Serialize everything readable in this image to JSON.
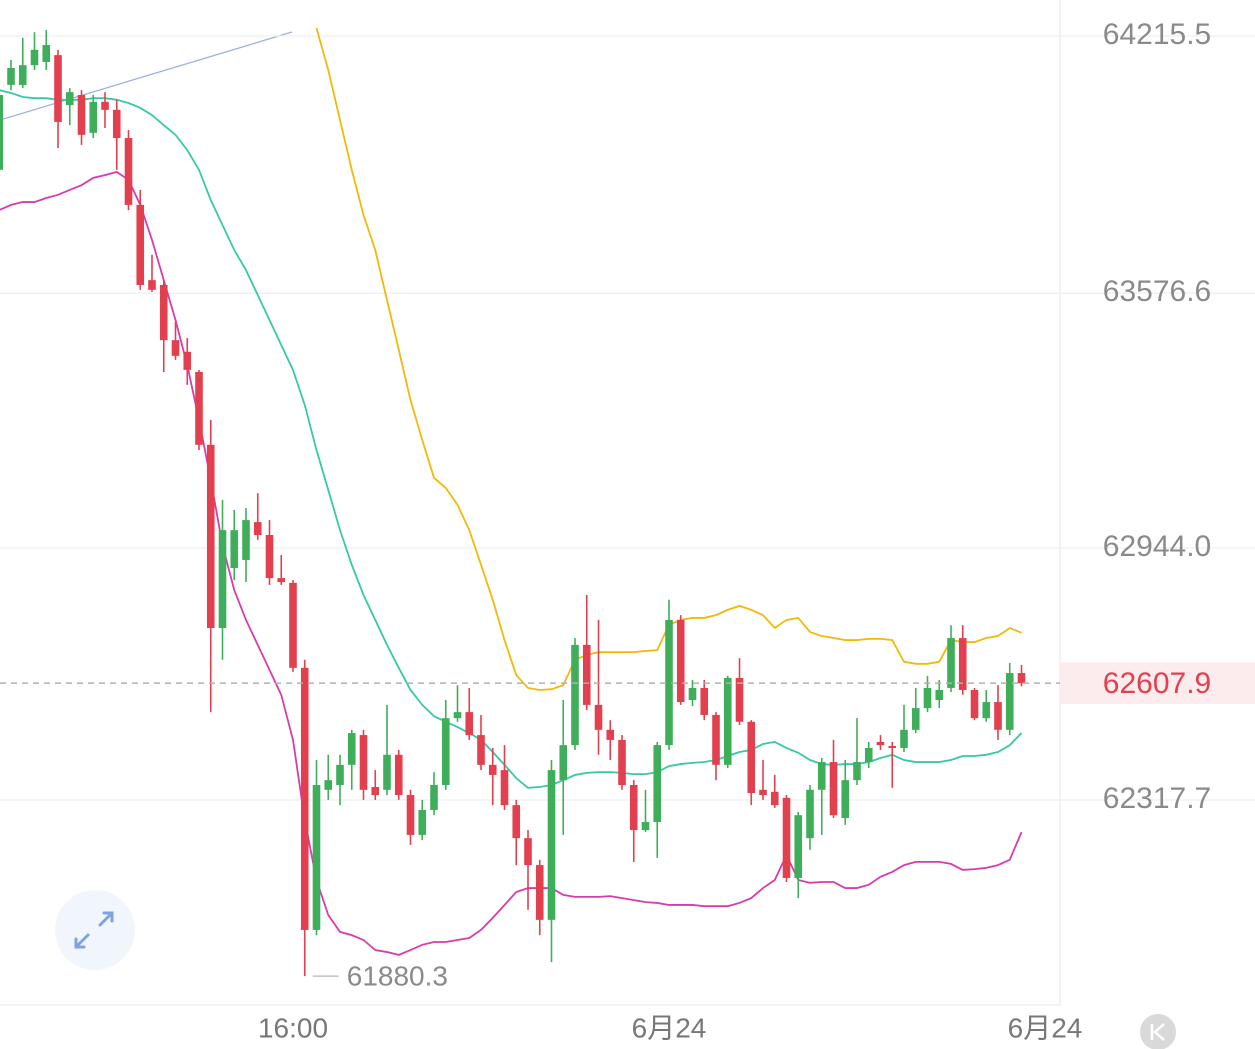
{
  "chart_data": {
    "type": "candlestick",
    "categories": [
      null,
      null,
      null,
      null,
      null,
      null,
      null,
      null,
      null,
      null,
      null,
      null,
      null,
      null,
      null,
      null,
      null,
      null,
      null,
      null,
      null,
      null,
      null,
      null,
      null,
      "16:00",
      null,
      null,
      null,
      null,
      null,
      null,
      null,
      null,
      null,
      null,
      null,
      null,
      null,
      null,
      null,
      null,
      null,
      null,
      null,
      null,
      null,
      null,
      null,
      null,
      null,
      null,
      null,
      null,
      null,
      null,
      null,
      "6月24",
      null,
      null,
      null,
      null,
      null,
      null,
      null,
      null,
      null,
      null,
      null,
      null,
      null,
      null,
      null,
      null,
      null,
      null,
      null,
      null,
      null,
      null,
      null,
      null,
      null,
      null,
      null,
      null,
      null,
      null,
      null,
      "6月24"
    ],
    "open": [
      63883,
      64094,
      64094,
      64143,
      64151,
      64168,
      64044,
      64069,
      63975,
      64052,
      64032,
      63962,
      63796,
      63609,
      63597,
      63460,
      63431,
      63381,
      63200,
      62745,
      62894,
      62914,
      63008,
      62976,
      62869,
      62857,
      62646,
      61995,
      62343,
      62355,
      62405,
      62479,
      62350,
      62343,
      62430,
      62330,
      62231,
      62293,
      62355,
      62521,
      62536,
      62479,
      62405,
      62392,
      62305,
      62223,
      62156,
      62020,
      62367,
      62454,
      62703,
      62554,
      62492,
      62467,
      62355,
      62243,
      62263,
      62454,
      62765,
      62566,
      62596,
      62529,
      62405,
      62621,
      62512,
      62343,
      62338,
      62323,
      62124,
      62223,
      62343,
      62412,
      62273,
      62367,
      62412,
      62462,
      62452,
      62447,
      62492,
      62546,
      62566,
      62596,
      62720,
      62591,
      62521,
      62561,
      62492,
      62633,
      null,
      null
    ],
    "high": [
      64086,
      64156,
      64211,
      64225,
      64230,
      64181,
      64086,
      64081,
      64069,
      64076,
      64057,
      63982,
      63833,
      63672,
      63609,
      63505,
      63465,
      63386,
      63262,
      63063,
      63038,
      63043,
      63080,
      63013,
      62926,
      62864,
      62666,
      62417,
      62430,
      62430,
      62492,
      62492,
      62392,
      62554,
      62442,
      62343,
      62318,
      62387,
      62566,
      62603,
      62596,
      62529,
      62447,
      62454,
      62318,
      62243,
      62169,
      62417,
      62566,
      62720,
      62827,
      62765,
      62516,
      62479,
      62367,
      62343,
      62462,
      62815,
      62777,
      62616,
      62616,
      62536,
      62626,
      62670,
      62516,
      62417,
      62380,
      62330,
      62288,
      62355,
      62422,
      62467,
      62417,
      62521,
      62462,
      62479,
      62462,
      62554,
      62596,
      62626,
      62616,
      62752,
      62752,
      62596,
      62591,
      62603,
      62658,
      62653,
      null,
      null
    ],
    "low": [
      63863,
      64081,
      64086,
      64131,
      64131,
      63937,
      63994,
      63945,
      63962,
      63987,
      63883,
      63783,
      63585,
      63580,
      63381,
      63411,
      63349,
      63187,
      62536,
      62666,
      62864,
      62859,
      62964,
      62852,
      62852,
      62636,
      61880.3,
      61982,
      62318,
      62305,
      62343,
      62318,
      62318,
      62330,
      62318,
      62206,
      62218,
      62280,
      62343,
      62512,
      62467,
      62392,
      62305,
      62293,
      62156,
      62045,
      61982,
      61915,
      62231,
      62442,
      62541,
      62430,
      62417,
      62343,
      62164,
      62238,
      62174,
      62442,
      62554,
      62551,
      62516,
      62367,
      62397,
      62504,
      62305,
      62318,
      62298,
      62114,
      62074,
      62194,
      62231,
      62273,
      62256,
      62355,
      62397,
      62442,
      62348,
      62437,
      62484,
      62536,
      62546,
      62586,
      62579,
      62516,
      62512,
      62467,
      62479,
      62600,
      null,
      null
    ],
    "close": [
      64069,
      64136,
      64143,
      64181,
      64193,
      64002,
      64076,
      63970,
      64052,
      64032,
      63962,
      63796,
      63597,
      63585,
      63460,
      63421,
      63386,
      63200,
      62745,
      62988,
      62988,
      63013,
      62976,
      62869,
      62859,
      62646,
      61995,
      62355,
      62367,
      62405,
      62484,
      62343,
      62330,
      62430,
      62330,
      62231,
      62293,
      62355,
      62521,
      62536,
      62479,
      62405,
      62380,
      62305,
      62223,
      62156,
      62020,
      62392,
      62454,
      62703,
      62554,
      62492,
      62467,
      62355,
      62243,
      62263,
      62454,
      62765,
      62561,
      62596,
      62529,
      62405,
      62621,
      62512,
      62335,
      62330,
      62305,
      62124,
      62280,
      62343,
      62412,
      62280,
      62367,
      62412,
      62447,
      62454,
      62447,
      62492,
      62546,
      62596,
      62591,
      62720,
      62591,
      62521,
      62561,
      62492,
      62633,
      62607.9,
      null,
      null
    ],
    "up_color": "#3fae5b",
    "down_color": "#e2404f",
    "lines": [
      {
        "color": "#f0b90b",
        "values": [
          null,
          null,
          null,
          null,
          null,
          null,
          null,
          null,
          null,
          null,
          null,
          null,
          null,
          null,
          null,
          null,
          null,
          null,
          null,
          null,
          null,
          null,
          null,
          null,
          null,
          null,
          null,
          64235,
          64131,
          64007,
          63883,
          63771,
          63684,
          63560,
          63436,
          63311,
          63212,
          63118,
          63093,
          63051,
          62988,
          62902,
          62815,
          62715,
          62628,
          62596,
          62591,
          62593,
          62603,
          62666,
          62678,
          62685,
          62685,
          62685,
          62685,
          62688,
          62690,
          62753,
          62765,
          62770,
          62770,
          62777,
          62790,
          62800,
          62790,
          62777,
          62745,
          62765,
          62770,
          62735,
          62725,
          62720,
          62715,
          62715,
          62718,
          62718,
          62715,
          62661,
          62656,
          62656,
          62661,
          62715,
          62710,
          62710,
          62720,
          62725,
          62745,
          62733,
          null,
          null
        ]
      },
      {
        "color": "#36c9a4",
        "values": [
          64081,
          64074,
          64064,
          64061,
          64061,
          64057,
          64057,
          64057,
          64061,
          64061,
          64057,
          64049,
          64037,
          64019,
          63994,
          63970,
          63932,
          63883,
          63808,
          63746,
          63684,
          63634,
          63572,
          63510,
          63448,
          63386,
          63299,
          63187,
          63088,
          62988,
          62902,
          62827,
          62765,
          62703,
          62646,
          62591,
          62554,
          62526,
          62512,
          62499,
          62484,
          62467,
          62437,
          62405,
          62372,
          62348,
          62350,
          62355,
          62367,
          62380,
          62385,
          62387,
          62387,
          62385,
          62382,
          62382,
          62387,
          62402,
          62407,
          62410,
          62412,
          62417,
          62427,
          62437,
          62442,
          62457,
          62462,
          62447,
          62435,
          62417,
          62407,
          62405,
          62407,
          62407,
          62412,
          62422,
          62430,
          62417,
          62412,
          62412,
          62412,
          62417,
          62427,
          62427,
          62430,
          62437,
          62454,
          62484,
          null,
          null
        ]
      },
      {
        "color": "#d83bae",
        "values": [
          63783,
          63796,
          63803,
          63803,
          63813,
          63821,
          63833,
          63845,
          63863,
          63870,
          63878,
          63858,
          63796,
          63709,
          63609,
          63510,
          63398,
          63262,
          63113,
          62951,
          62839,
          62765,
          62703,
          62641,
          62579,
          62467,
          62268,
          62119,
          62032,
          61990,
          61982,
          61970,
          61945,
          61940,
          61933,
          61945,
          61958,
          61965,
          61965,
          61970,
          61975,
          61995,
          62025,
          62057,
          62089,
          62099,
          62099,
          62099,
          62082,
          62077,
          62077,
          62077,
          62079,
          62074,
          62069,
          62064,
          62062,
          62057,
          62057,
          62057,
          62054,
          62054,
          62054,
          62062,
          62074,
          62099,
          62119,
          62181,
          62119,
          62112,
          62114,
          62114,
          62099,
          62099,
          62107,
          62127,
          62139,
          62156,
          62164,
          62164,
          62164,
          62159,
          62144,
          62146,
          62149,
          62156,
          62169,
          62238,
          null,
          null
        ]
      }
    ],
    "ylim": [
      61808.5,
      64304.9
    ],
    "yticks": [
      62317.7,
      {
        "value": 62944,
        "label": "62944.0"
      },
      63576.6,
      64215.5
    ],
    "grid": true,
    "last_price": 62607.9,
    "low_marker": 61880.3
  }
}
